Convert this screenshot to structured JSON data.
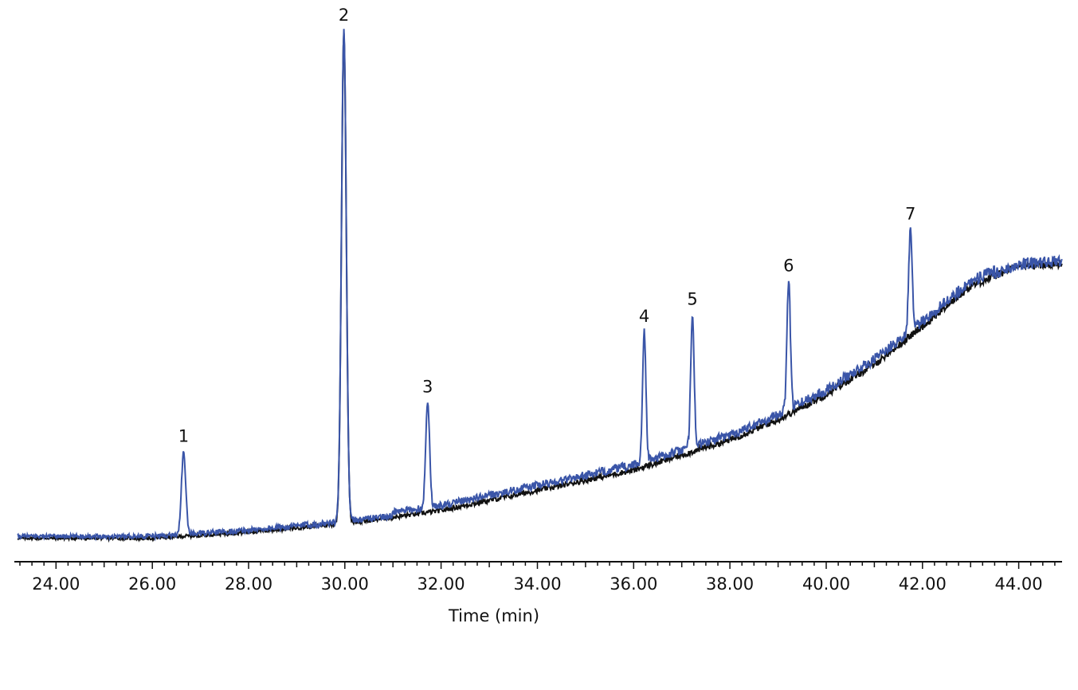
{
  "chart_data": {
    "type": "line",
    "xlabel": "Time (min)",
    "ylabel": "",
    "xlim": [
      23.2,
      44.9
    ],
    "ylim": [
      -0.03,
      1.0
    ],
    "x_ticks": [
      "24.00",
      "26.00",
      "28.00",
      "30.00",
      "32.00",
      "34.00",
      "36.00",
      "38.00",
      "40.00",
      "42.00",
      "44.00"
    ],
    "x_tick_values": [
      24,
      26,
      28,
      30,
      32,
      34,
      36,
      38,
      40,
      42,
      44
    ],
    "grid": false,
    "legend": "none",
    "colors": {
      "sample": "#3a55a8",
      "blank": "#111111",
      "axis": "#111111"
    },
    "baseline": {
      "x": [
        23.2,
        26.0,
        28.0,
        29.5,
        30.5,
        32.0,
        34.0,
        36.0,
        37.0,
        38.0,
        39.0,
        40.0,
        41.0,
        42.0,
        43.0,
        44.0,
        44.9
      ],
      "y": [
        0.0,
        0.0,
        0.012,
        0.025,
        0.035,
        0.055,
        0.095,
        0.135,
        0.165,
        0.195,
        0.235,
        0.285,
        0.345,
        0.42,
        0.5,
        0.54,
        0.545
      ]
    },
    "series": [
      {
        "key": "sample",
        "peaks": [
          1,
          2,
          3,
          4,
          5,
          6,
          7
        ]
      },
      {
        "key": "blank",
        "peaks": [
          2
        ]
      }
    ],
    "peaks": [
      {
        "label": "1",
        "x": 26.65,
        "apex": 0.165,
        "sigma": 0.045
      },
      {
        "label": "2",
        "x": 29.98,
        "apex": 1.0,
        "sigma": 0.05
      },
      {
        "label": "3",
        "x": 31.72,
        "apex": 0.263,
        "sigma": 0.04
      },
      {
        "label": "4",
        "x": 36.22,
        "apex": 0.403,
        "sigma": 0.035
      },
      {
        "label": "5",
        "x": 37.22,
        "apex": 0.437,
        "sigma": 0.035
      },
      {
        "label": "6",
        "x": 39.22,
        "apex": 0.503,
        "sigma": 0.035
      },
      {
        "label": "7",
        "x": 41.75,
        "apex": 0.606,
        "sigma": 0.035
      }
    ]
  }
}
